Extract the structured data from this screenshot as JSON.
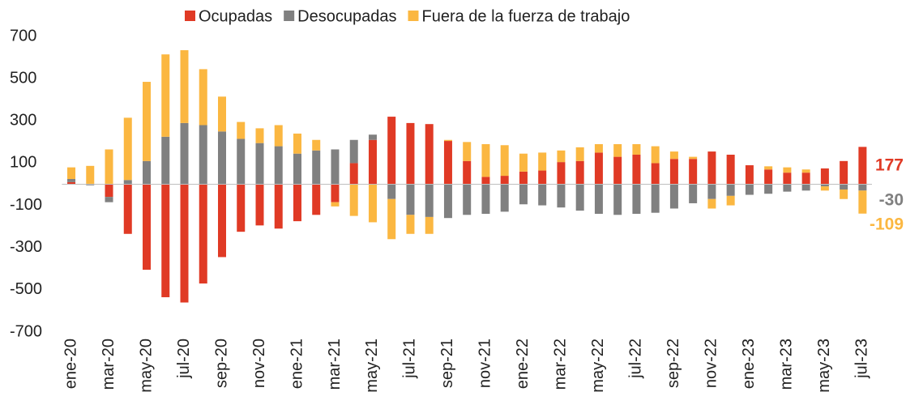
{
  "chart_data": {
    "type": "bar",
    "stacked": true,
    "categories": [
      "ene-20",
      null,
      "mar-20",
      null,
      "may-20",
      null,
      "jul-20",
      null,
      "sep-20",
      null,
      "nov-20",
      null,
      "ene-21",
      null,
      "mar-21",
      null,
      "may-21",
      null,
      "jul-21",
      null,
      "sep-21",
      null,
      "nov-21",
      null,
      "ene-22",
      null,
      "mar-22",
      null,
      "may-22",
      null,
      "jul-22",
      null,
      "sep-22",
      null,
      "nov-22",
      null,
      "ene-23",
      null,
      "mar-23",
      null,
      "may-23",
      null,
      "jul-23"
    ],
    "series": [
      {
        "name": "Ocupadas",
        "color": "#e03a25",
        "values": [
          10,
          2,
          -60,
          -235,
          -405,
          -535,
          -560,
          -470,
          -345,
          -225,
          -195,
          -210,
          -175,
          -145,
          -85,
          100,
          210,
          320,
          290,
          285,
          205,
          110,
          35,
          40,
          60,
          65,
          105,
          110,
          150,
          130,
          140,
          100,
          120,
          120,
          155,
          140,
          90,
          70,
          55,
          55,
          75,
          110,
          177
        ]
      },
      {
        "name": "Desocupadas",
        "color": "#808080",
        "values": [
          15,
          -5,
          -25,
          20,
          110,
          225,
          290,
          280,
          250,
          215,
          195,
          180,
          145,
          160,
          165,
          110,
          25,
          -70,
          -145,
          -155,
          -160,
          -145,
          -140,
          -130,
          -95,
          -100,
          -110,
          -125,
          -140,
          -145,
          -140,
          -135,
          -115,
          -90,
          -70,
          -55,
          -50,
          -45,
          -35,
          -30,
          -10,
          -25,
          -30
        ]
      },
      {
        "name": "Fuera de la fuerza de trabajo",
        "color": "#fbb741",
        "values": [
          55,
          85,
          165,
          295,
          375,
          390,
          345,
          265,
          165,
          80,
          70,
          100,
          95,
          50,
          -20,
          -150,
          -180,
          -190,
          -90,
          -80,
          5,
          90,
          155,
          145,
          85,
          85,
          55,
          65,
          40,
          60,
          50,
          80,
          35,
          10,
          -45,
          -45,
          0,
          15,
          25,
          15,
          -20,
          -45,
          -109
        ]
      }
    ],
    "ylim": [
      -700,
      700
    ],
    "yticks": [
      -700,
      -500,
      -300,
      -100,
      100,
      300,
      500,
      700
    ],
    "legend": "top"
  }
}
